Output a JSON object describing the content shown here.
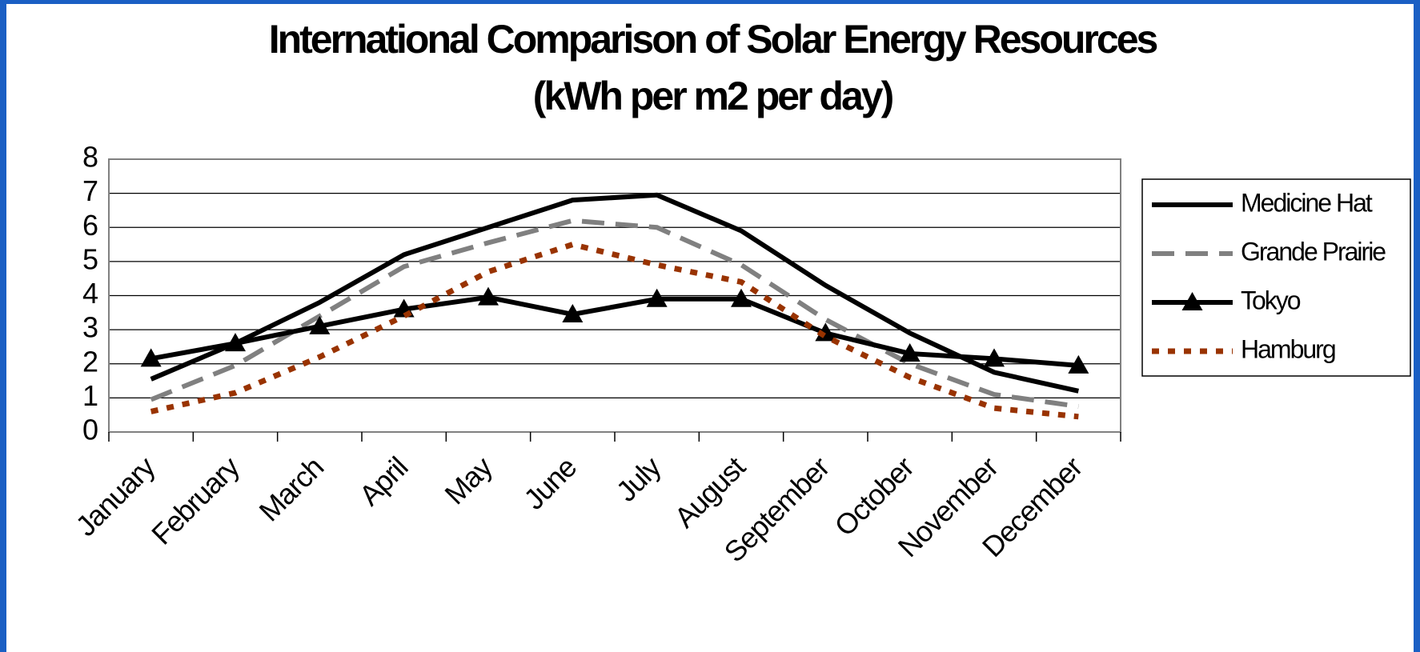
{
  "chart_data": {
    "type": "line",
    "title": "International Comparison of Solar Energy Resources",
    "subtitle": "(kWh per m2 per day)",
    "categories": [
      "January",
      "February",
      "March",
      "April",
      "May",
      "June",
      "July",
      "August",
      "September",
      "October",
      "November",
      "December"
    ],
    "series": [
      {
        "name": "Medicine Hat",
        "color": "#000000",
        "dash": "solid",
        "marker": "none",
        "values": [
          1.55,
          2.6,
          3.8,
          5.2,
          6.0,
          6.8,
          6.95,
          5.9,
          4.3,
          2.9,
          1.75,
          1.2
        ]
      },
      {
        "name": "Grande Prairie",
        "color": "#808080",
        "dash": "dashed",
        "marker": "none",
        "values": [
          0.95,
          1.95,
          3.4,
          4.85,
          5.55,
          6.2,
          6.0,
          4.9,
          3.3,
          2.0,
          1.1,
          0.75
        ]
      },
      {
        "name": "Tokyo",
        "color": "#000000",
        "dash": "solid",
        "marker": "triangle",
        "values": [
          2.15,
          2.6,
          3.1,
          3.6,
          3.95,
          3.45,
          3.9,
          3.9,
          2.9,
          2.3,
          2.15,
          1.95
        ]
      },
      {
        "name": "Hamburg",
        "color": "#993300",
        "dash": "dotted",
        "marker": "none",
        "values": [
          0.6,
          1.15,
          2.2,
          3.4,
          4.7,
          5.5,
          4.9,
          4.4,
          2.8,
          1.6,
          0.7,
          0.45
        ]
      }
    ],
    "ylim": [
      0,
      8
    ],
    "yticks": [
      0,
      1,
      2,
      3,
      4,
      5,
      6,
      7,
      8
    ],
    "grid": true,
    "legend": "right"
  }
}
